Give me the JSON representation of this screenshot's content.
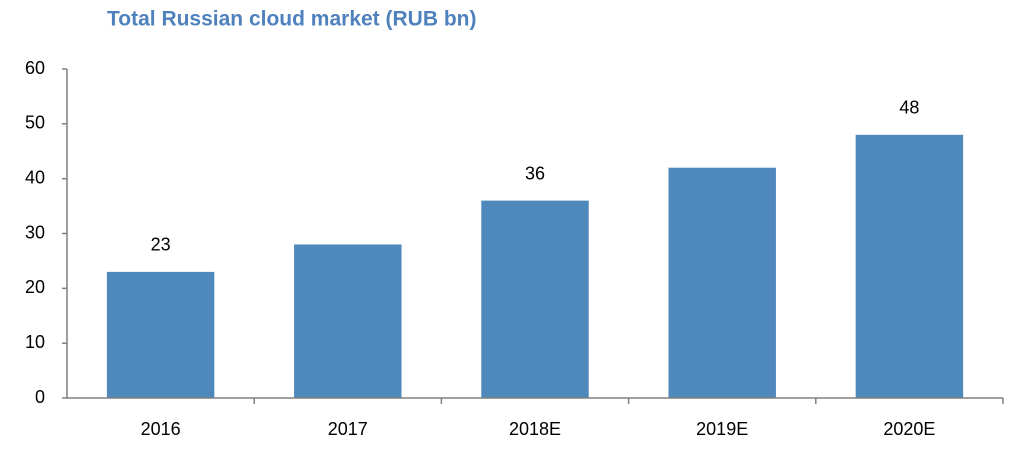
{
  "chart_data": {
    "type": "bar",
    "title": "Total Russian cloud market (RUB bn)",
    "categories": [
      "2016",
      "2017",
      "2018E",
      "2019E",
      "2020E"
    ],
    "values": [
      23,
      28,
      36,
      42,
      48
    ],
    "value_labels": [
      "23",
      null,
      "36",
      null,
      "48"
    ],
    "color": "#4f88bb",
    "ylim": [
      0,
      60
    ],
    "yticks": [
      0,
      10,
      20,
      30,
      40,
      50,
      60
    ],
    "grid": false
  }
}
